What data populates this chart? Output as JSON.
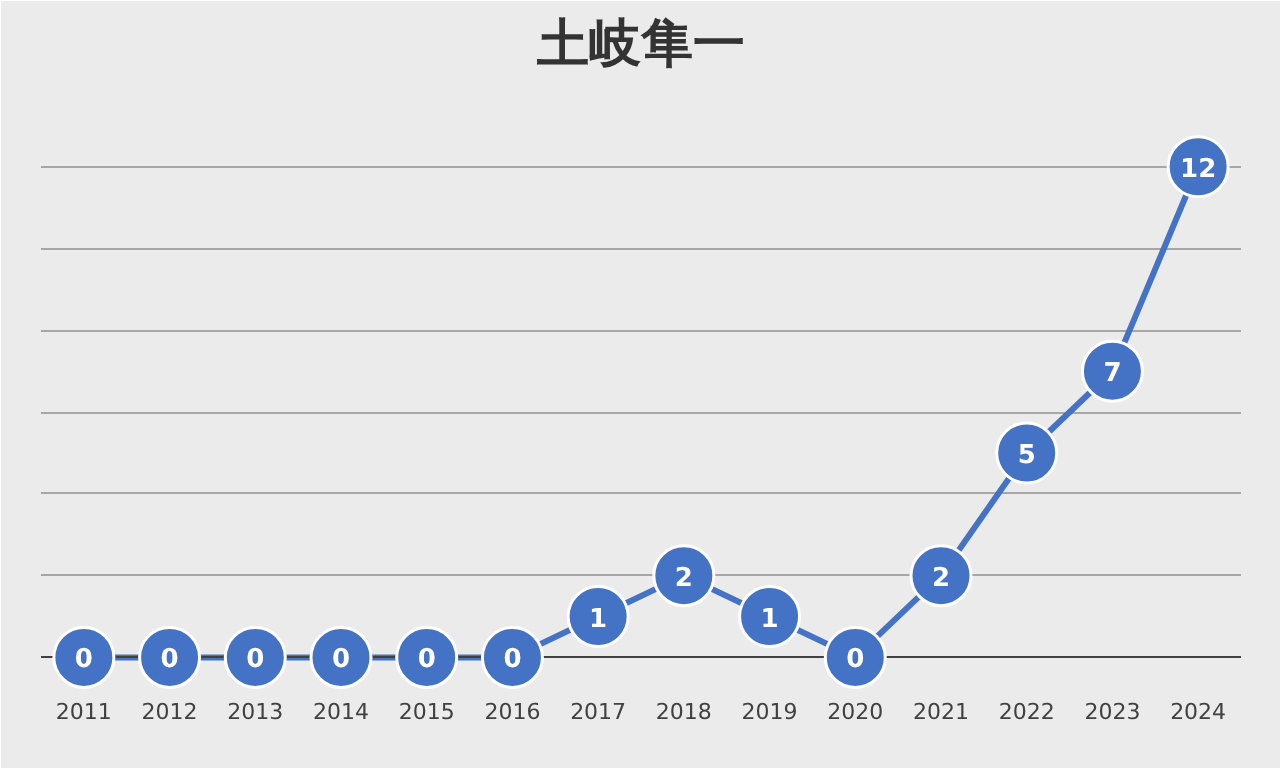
{
  "chart_data": {
    "type": "line",
    "title": "土岐隼一",
    "categories": [
      "2011",
      "2012",
      "2013",
      "2014",
      "2015",
      "2016",
      "2017",
      "2018",
      "2019",
      "2020",
      "2021",
      "2022",
      "2023",
      "2024"
    ],
    "series": [
      {
        "color": "#4472c4",
        "values": [
          0,
          0,
          0,
          0,
          0,
          0,
          1,
          2,
          1,
          0,
          2,
          5,
          7,
          12
        ]
      }
    ],
    "ylim": [
      0,
      14
    ],
    "yticks": [
      {
        "value": 0,
        "label": null
      },
      {
        "value": 2,
        "label": null
      },
      {
        "value": 4,
        "label": null
      },
      {
        "value": 6,
        "label": null
      },
      {
        "value": 8,
        "label": null
      },
      {
        "value": 10,
        "label": null
      },
      {
        "value": 12,
        "label": null
      },
      {
        "value": 14,
        "label": null
      }
    ],
    "grid": "y",
    "tick_labels": "x",
    "data_labels": true,
    "marker": "circle",
    "line_style": "solid"
  }
}
